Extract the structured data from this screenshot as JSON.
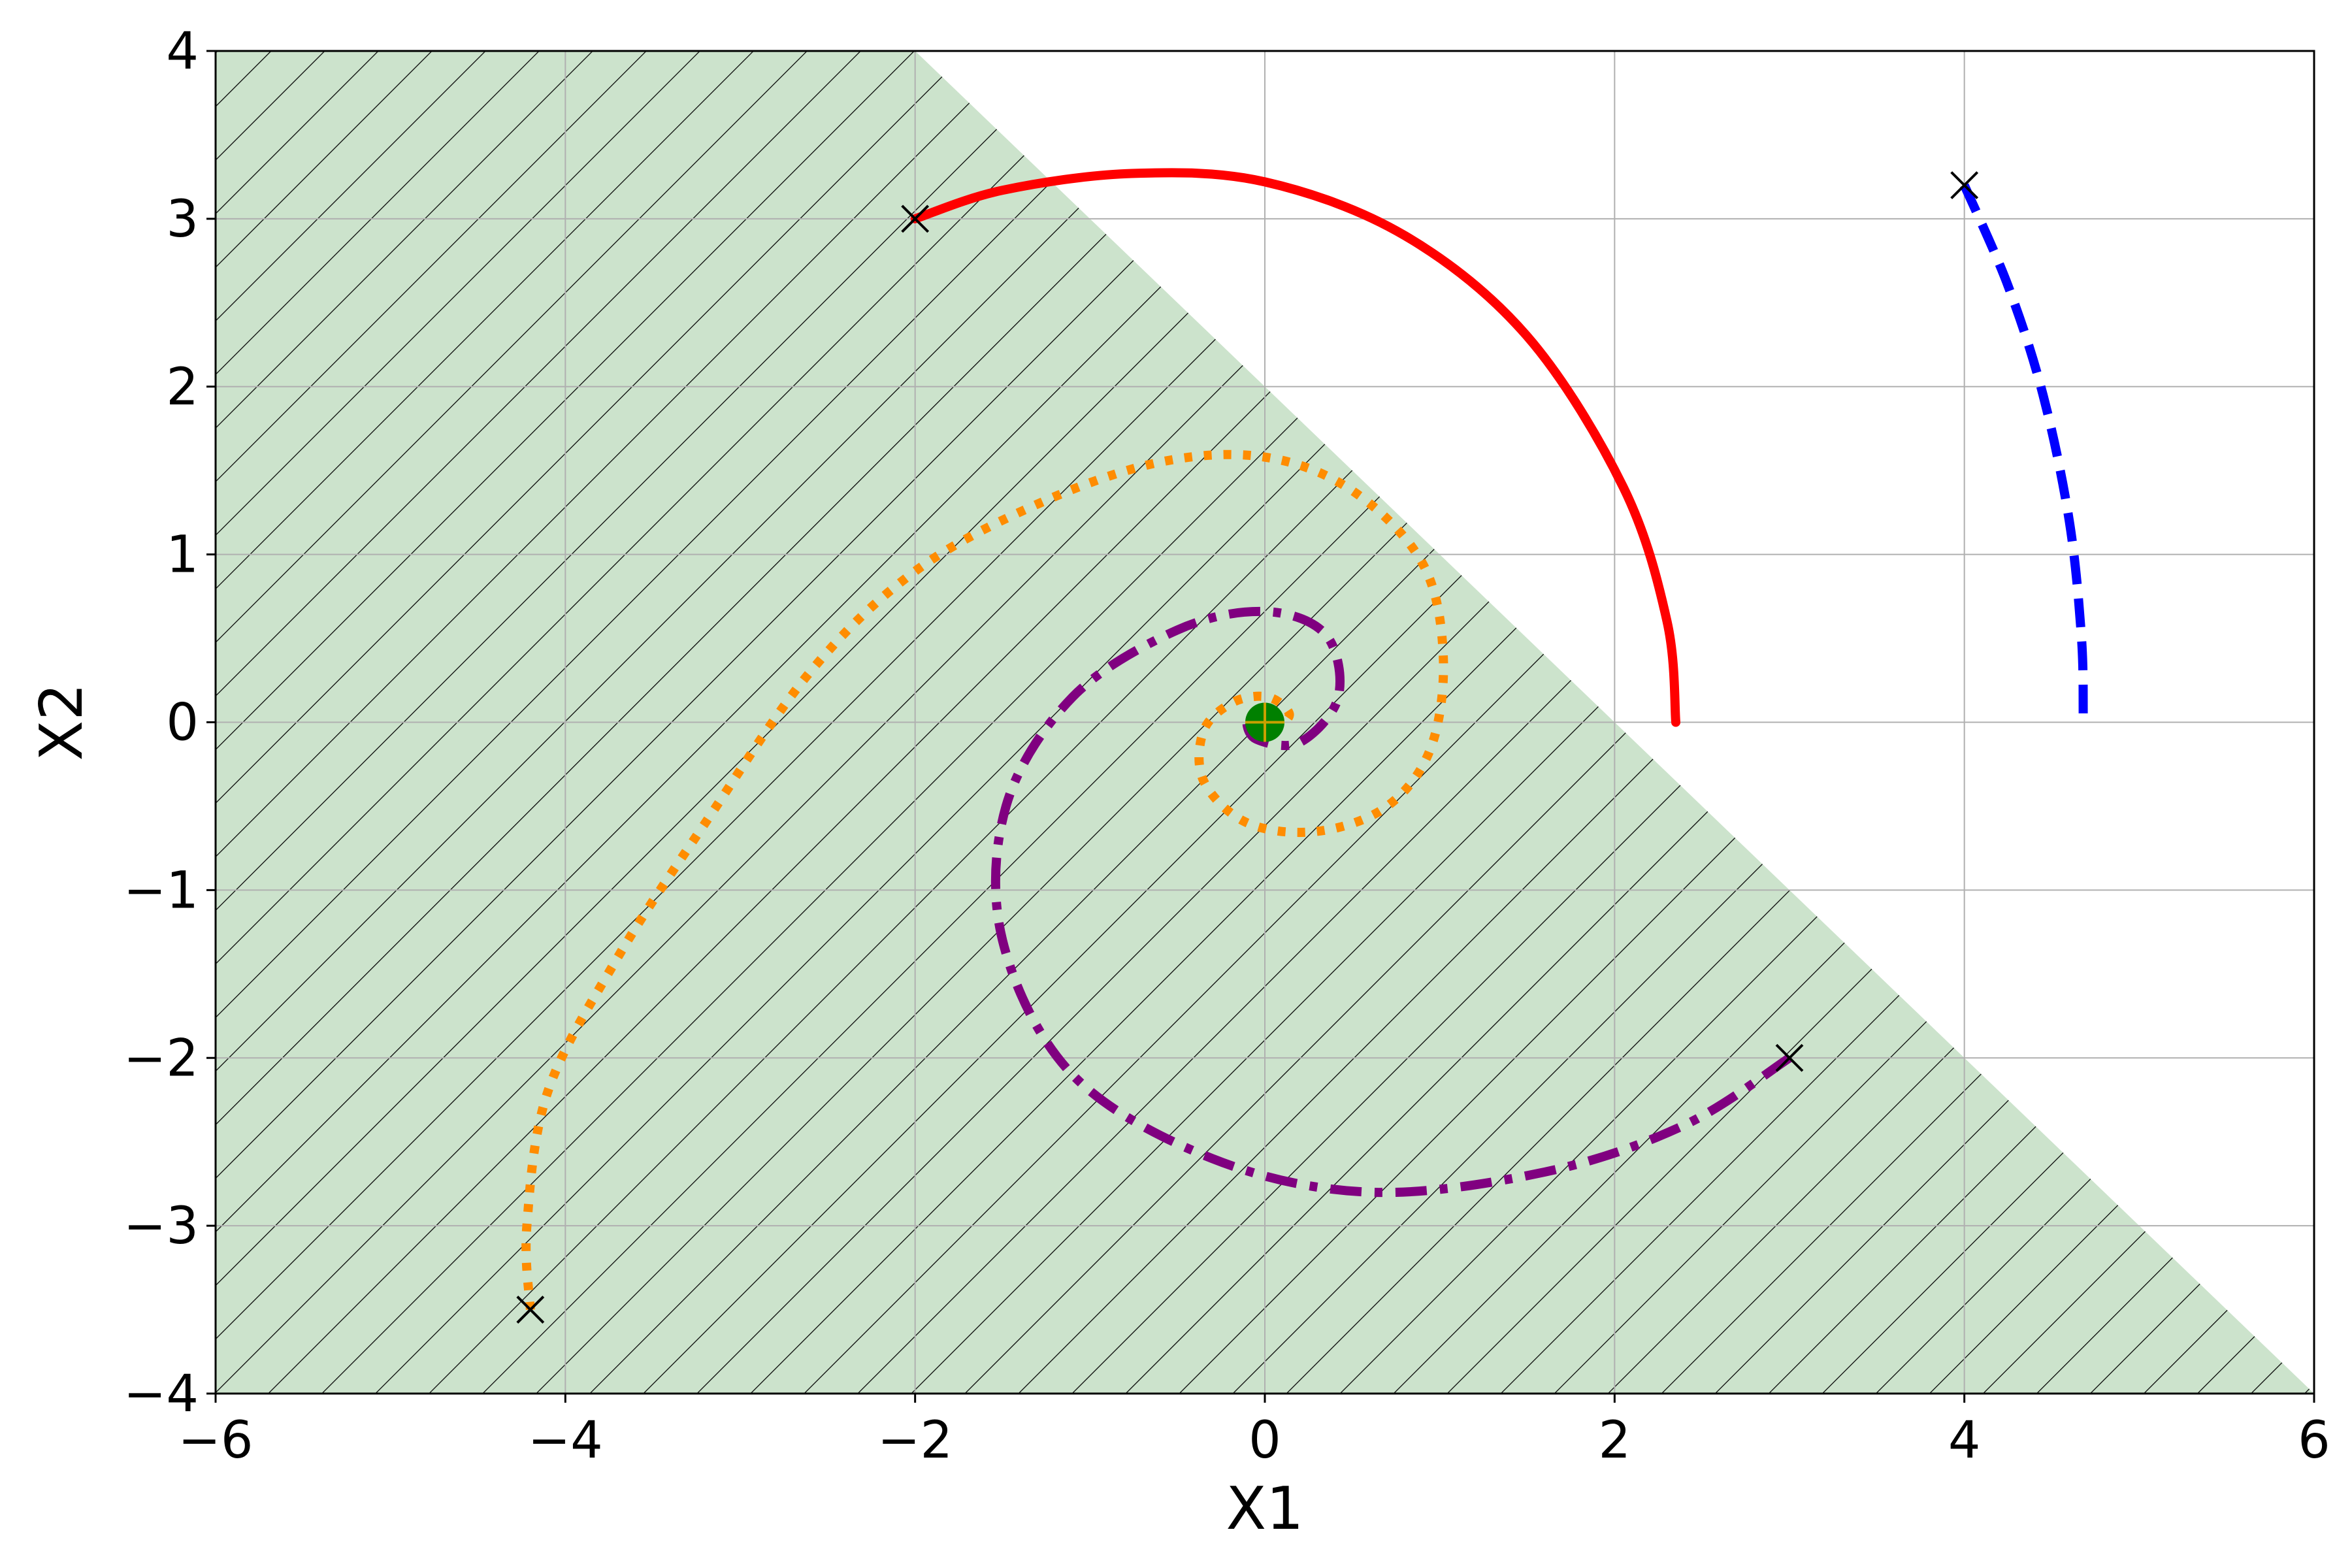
{
  "chart_data": {
    "type": "line",
    "title": "",
    "xlabel": "X1",
    "ylabel": "X2",
    "xlim": [
      -6,
      6
    ],
    "ylim": [
      -4,
      4
    ],
    "xticks": [
      -6,
      -4,
      -2,
      0,
      2,
      4,
      6
    ],
    "yticks": [
      -4,
      -3,
      -2,
      -1,
      0,
      1,
      2,
      3,
      4
    ],
    "xtick_labels": [
      "−6",
      "−4",
      "−2",
      "0",
      "2",
      "4",
      "6"
    ],
    "ytick_labels": [
      "−4",
      "−3",
      "−2",
      "−1",
      "0",
      "1",
      "2",
      "3",
      "4"
    ],
    "grid": true,
    "region": {
      "description": "hatched shaded region below the line x1 + x2 = 2",
      "boundary": [
        [
          -6,
          4
        ],
        [
          -2,
          4
        ],
        [
          6,
          -4
        ],
        [
          -6,
          -4
        ]
      ],
      "fill_color": "#cce3cc",
      "hatch_color": "#000000"
    },
    "equilibrium": {
      "x": 0,
      "y": 0,
      "color": "#008000"
    },
    "series": [
      {
        "style": "solid",
        "color": "#ff0000",
        "points": [
          [
            -2,
            3
          ],
          [
            -1.5,
            3.17
          ],
          [
            -0.76,
            3.27
          ],
          [
            0,
            3.22
          ],
          [
            0.8,
            2.9
          ],
          [
            1.5,
            2.3
          ],
          [
            2.05,
            1.4
          ],
          [
            2.3,
            0.6
          ],
          [
            2.35,
            0
          ]
        ]
      },
      {
        "style": "dashed",
        "color": "#0000ff",
        "points": [
          [
            4,
            3.2
          ],
          [
            4.25,
            2.6
          ],
          [
            4.45,
            1.95
          ],
          [
            4.6,
            1.2
          ],
          [
            4.67,
            0.5
          ],
          [
            4.68,
            0
          ]
        ]
      },
      {
        "style": "dotted",
        "color": "#ff8c00",
        "points": [
          [
            -4.2,
            -3.5
          ],
          [
            -4.22,
            -3.0
          ],
          [
            -4.1,
            -2.2
          ],
          [
            -3.7,
            -1.4
          ],
          [
            -3.2,
            -0.6
          ],
          [
            -2.6,
            0.3
          ],
          [
            -2.0,
            0.9
          ],
          [
            -1.3,
            1.3
          ],
          [
            -0.6,
            1.55
          ],
          [
            0,
            1.58
          ],
          [
            0.5,
            1.38
          ],
          [
            0.9,
            0.95
          ],
          [
            1.02,
            0.4
          ],
          [
            0.95,
            -0.15
          ],
          [
            0.7,
            -0.5
          ],
          [
            0.3,
            -0.65
          ],
          [
            -0.1,
            -0.6
          ],
          [
            -0.35,
            -0.35
          ],
          [
            -0.35,
            -0.05
          ],
          [
            -0.18,
            0.12
          ],
          [
            0.02,
            0.15
          ],
          [
            0.14,
            0.05
          ],
          [
            0.06,
            -0.03
          ],
          [
            0,
            0
          ]
        ]
      },
      {
        "style": "dashdot",
        "color": "#800080",
        "points": [
          [
            3,
            -2
          ],
          [
            2.4,
            -2.4
          ],
          [
            1.6,
            -2.68
          ],
          [
            0.6,
            -2.8
          ],
          [
            -0.3,
            -2.6
          ],
          [
            -1.1,
            -2.1
          ],
          [
            -1.5,
            -1.3
          ],
          [
            -1.48,
            -0.5
          ],
          [
            -1.1,
            0.15
          ],
          [
            -0.5,
            0.55
          ],
          [
            0,
            0.66
          ],
          [
            0.35,
            0.52
          ],
          [
            0.42,
            0.15
          ],
          [
            0.2,
            -0.12
          ],
          [
            -0.05,
            -0.1
          ],
          [
            -0.1,
            0.02
          ],
          [
            0,
            0
          ]
        ]
      }
    ],
    "start_markers": [
      [
        -2,
        3
      ],
      [
        4,
        3.2
      ],
      [
        -4.2,
        -3.5
      ],
      [
        3,
        -2
      ]
    ]
  }
}
